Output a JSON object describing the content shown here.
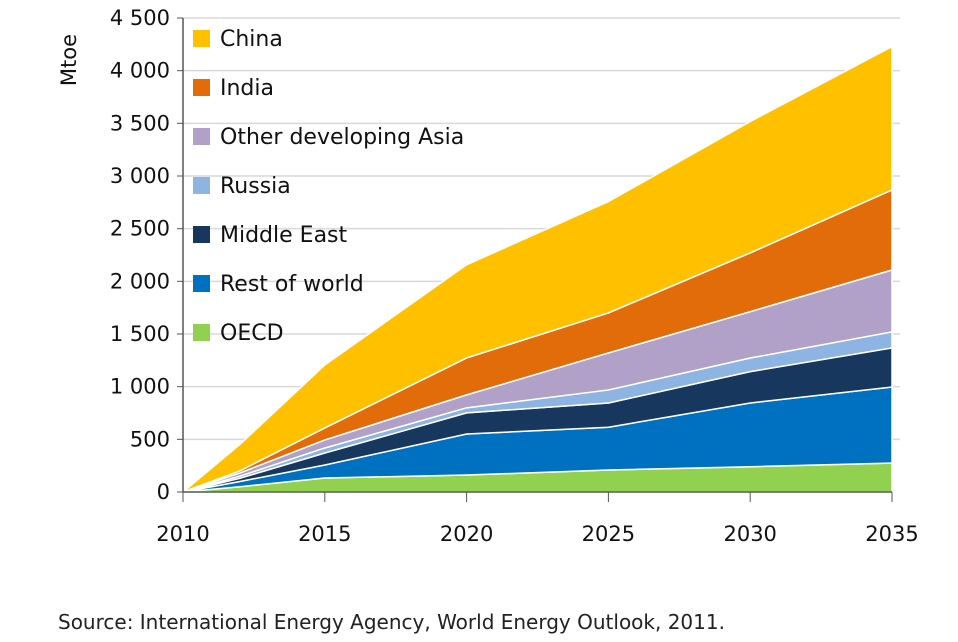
{
  "chart_data": {
    "type": "area",
    "stacked": true,
    "ylabel": "Mtoe",
    "xlabel": "",
    "ylim": [
      0,
      4500
    ],
    "xlim": [
      2010,
      2035
    ],
    "yticks": [
      "0",
      "500",
      "1 000",
      "1 500",
      "2 000",
      "2 500",
      "3 000",
      "3 500",
      "4 000",
      "4 500"
    ],
    "ytick_values": [
      0,
      500,
      1000,
      1500,
      2000,
      2500,
      3000,
      3500,
      4000,
      4500
    ],
    "xticks": [
      "2010",
      "2015",
      "2020",
      "2025",
      "2030",
      "2035"
    ],
    "xtick_values": [
      2010,
      2015,
      2020,
      2025,
      2030,
      2035
    ],
    "grid": "horizontal",
    "legend_position": "top-left",
    "x": [
      2010,
      2012,
      2015,
      2020,
      2025,
      2030,
      2035
    ],
    "series": [
      {
        "name": "OECD",
        "color": "#92D050",
        "values": [
          0,
          50,
          133,
          161,
          209,
          240,
          275
        ]
      },
      {
        "name": "Rest of world",
        "color": "#0070C0",
        "values": [
          0,
          50,
          123,
          390,
          406,
          605,
          722
        ]
      },
      {
        "name": "Middle East",
        "color": "#17375E",
        "values": [
          0,
          30,
          114,
          200,
          230,
          298,
          371
        ]
      },
      {
        "name": "Russia",
        "color": "#8DB4E2",
        "values": [
          0,
          20,
          48,
          48,
          124,
          129,
          152
        ]
      },
      {
        "name": "Other developing Asia",
        "color": "#B1A0C7",
        "values": [
          0,
          30,
          76,
          123,
          351,
          440,
          588
        ]
      },
      {
        "name": "India",
        "color": "#E36C0A",
        "values": [
          0,
          20,
          114,
          351,
          380,
          558,
          760
        ]
      },
      {
        "name": "China",
        "color": "#FFC000",
        "values": [
          0,
          250,
          598,
          884,
          1057,
          1247,
          1361
        ]
      }
    ],
    "legend_order": [
      "China",
      "India",
      "Other developing Asia",
      "Russia",
      "Middle East",
      "Rest of world",
      "OECD"
    ]
  },
  "source": "Source: International Energy Agency, World Energy Outlook, 2011."
}
